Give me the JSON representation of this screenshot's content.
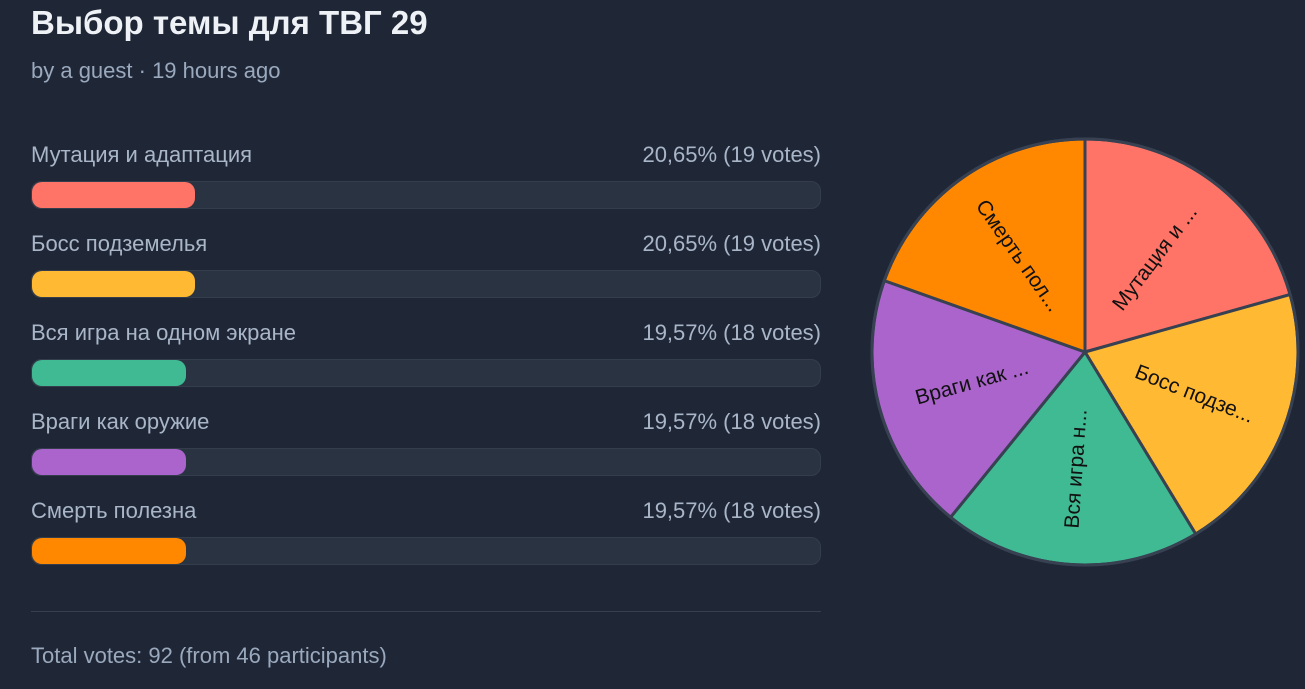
{
  "title": "Выбор темы для ТВГ 29",
  "meta": "by a guest · 19 hours ago",
  "options": [
    {
      "label": "Мутация и адаптация",
      "result": "20,65% (19 votes)",
      "percent": 20.65,
      "votes": 19,
      "color": "#ff7466",
      "short": "Мутация и ..."
    },
    {
      "label": "Босс подземелья",
      "result": "20,65% (19 votes)",
      "percent": 20.65,
      "votes": 19,
      "color": "#ffb933",
      "short": "Босс подзе..."
    },
    {
      "label": "Вся игра на одном экране",
      "result": "19,57% (18 votes)",
      "percent": 19.57,
      "votes": 18,
      "color": "#3fba92",
      "short": "Вся игра н..."
    },
    {
      "label": "Враги как оружие",
      "result": "19,57% (18 votes)",
      "percent": 19.57,
      "votes": 18,
      "color": "#aa64cc",
      "short": "Враги как ..."
    },
    {
      "label": "Смерть полезна",
      "result": "19,57% (18 votes)",
      "percent": 19.57,
      "votes": 18,
      "color": "#ff8800",
      "short": "Смерть пол..."
    }
  ],
  "total": "Total votes: 92 (from 46 participants)",
  "chart_data": {
    "type": "pie",
    "categories": [
      "Мутация и ...",
      "Босс подзе...",
      "Вся игра н...",
      "Враги как ...",
      "Смерть пол..."
    ],
    "values": [
      19,
      19,
      18,
      18,
      18
    ]
  }
}
